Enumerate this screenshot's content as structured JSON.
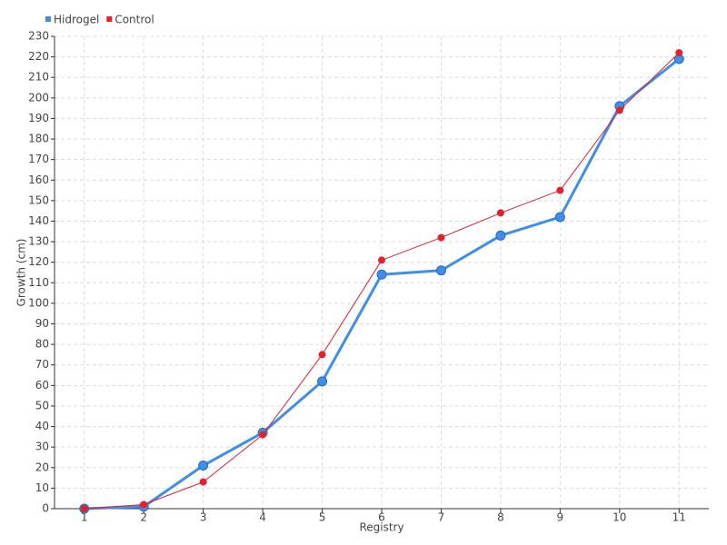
{
  "chart_data": {
    "type": "line",
    "x_label": "Registry",
    "y_label": "Growth (cm)",
    "categories": [
      "1",
      "2",
      "3",
      "4",
      "5",
      "6",
      "7",
      "8",
      "9",
      "10",
      "11"
    ],
    "series": [
      {
        "name": "Hidrogel",
        "color": "#3d8fe8",
        "values": [
          0,
          1,
          21,
          37,
          62,
          114,
          116,
          133,
          142,
          196,
          219
        ]
      },
      {
        "name": "Control",
        "color": "#e3202c",
        "values": [
          0,
          2,
          13,
          36,
          75,
          121,
          132,
          144,
          155,
          194,
          222
        ]
      }
    ],
    "ylim": [
      0,
      230
    ],
    "yticks": [
      0,
      10,
      20,
      30,
      40,
      50,
      60,
      70,
      80,
      90,
      100,
      110,
      120,
      130,
      140,
      150,
      160,
      170,
      180,
      190,
      200,
      210,
      220,
      230
    ],
    "grid": true,
    "legend": "top-left"
  }
}
